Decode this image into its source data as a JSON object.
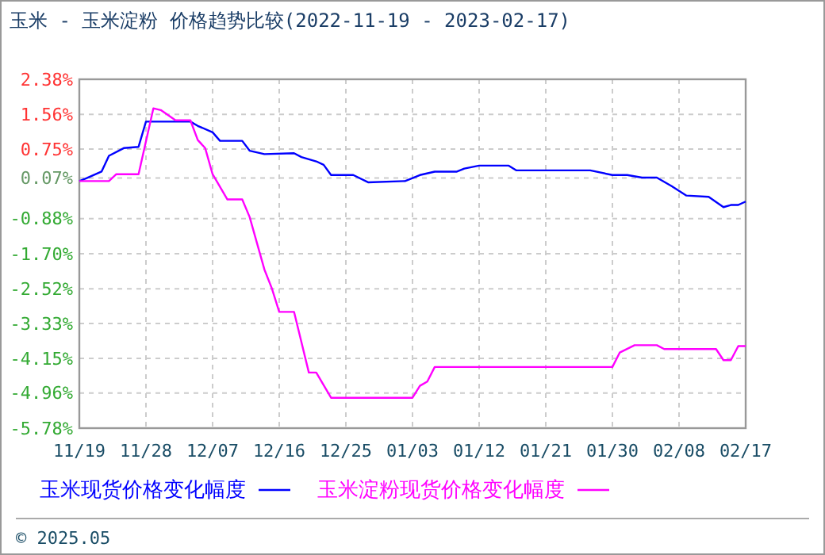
{
  "chart_data": {
    "type": "line",
    "title": "玉米 - 玉米淀粉 价格趋势比较(2022-11-19 - 2023-02-17)",
    "annotations": [
      "© 2025.05"
    ],
    "xlim": [
      "2022-11-19",
      "2023-02-17"
    ],
    "xticks": [
      {
        "value": "2022-11-19",
        "label": "11/19"
      },
      {
        "value": "2022-11-28",
        "label": "11/28"
      },
      {
        "value": "2022-12-07",
        "label": "12/07"
      },
      {
        "value": "2022-12-16",
        "label": "12/16"
      },
      {
        "value": "2022-12-25",
        "label": "12/25"
      },
      {
        "value": "2023-01-03",
        "label": "01/03"
      },
      {
        "value": "2023-01-12",
        "label": "01/12"
      },
      {
        "value": "2023-01-21",
        "label": "01/21"
      },
      {
        "value": "2023-01-30",
        "label": "01/30"
      },
      {
        "value": "2023-02-08",
        "label": "02/08"
      },
      {
        "value": "2023-02-17",
        "label": "02/17"
      }
    ],
    "ylim": [
      -5.78,
      2.38
    ],
    "yticks": [
      {
        "value": 2.38,
        "label": "2.38%"
      },
      {
        "value": 1.56,
        "label": "1.56%"
      },
      {
        "value": 0.75,
        "label": "0.75%"
      },
      {
        "value": 0.07,
        "label": "0.07%"
      },
      {
        "value": -0.88,
        "label": "-0.88%"
      },
      {
        "value": -1.7,
        "label": "-1.70%"
      },
      {
        "value": -2.52,
        "label": "-2.52%"
      },
      {
        "value": -3.33,
        "label": "-3.33%"
      },
      {
        "value": -4.15,
        "label": "-4.15%"
      },
      {
        "value": -4.96,
        "label": "-4.96%"
      },
      {
        "value": -5.78,
        "label": "-5.78%"
      }
    ],
    "grid": true,
    "legend": "bottom",
    "marker": "none",
    "line_style": "solid",
    "series": [
      {
        "name": "玉米现货价格变化幅度",
        "color": "#0000ff",
        "x": [
          "2022-11-19",
          "2022-11-20",
          "2022-11-22",
          "2022-11-23",
          "2022-11-25",
          "2022-11-27",
          "2022-11-28",
          "2022-12-04",
          "2022-12-05",
          "2022-12-07",
          "2022-12-08",
          "2022-12-11",
          "2022-12-12",
          "2022-12-14",
          "2022-12-18",
          "2022-12-19",
          "2022-12-21",
          "2022-12-22",
          "2022-12-23",
          "2022-12-26",
          "2022-12-28",
          "2023-01-02",
          "2023-01-04",
          "2023-01-06",
          "2023-01-09",
          "2023-01-10",
          "2023-01-12",
          "2023-01-16",
          "2023-01-17",
          "2023-01-27",
          "2023-01-30",
          "2023-02-01",
          "2023-02-03",
          "2023-02-05",
          "2023-02-07",
          "2023-02-09",
          "2023-02-12",
          "2023-02-14",
          "2023-02-15",
          "2023-02-16",
          "2023-02-17"
        ],
        "values": [
          0,
          0.07,
          0.22,
          0.59,
          0.77,
          0.8,
          1.39,
          1.39,
          1.29,
          1.14,
          0.94,
          0.94,
          0.71,
          0.63,
          0.65,
          0.56,
          0.46,
          0.38,
          0.14,
          0.14,
          -0.03,
          0,
          0.14,
          0.22,
          0.22,
          0.29,
          0.36,
          0.36,
          0.25,
          0.25,
          0.14,
          0.14,
          0.08,
          0.08,
          -0.12,
          -0.34,
          -0.37,
          -0.61,
          -0.56,
          -0.56,
          -0.48
        ]
      },
      {
        "name": "玉米淀粉现货价格变化幅度",
        "color": "#ff00ff",
        "x": [
          "2022-11-19",
          "2022-11-23",
          "2022-11-24",
          "2022-11-27",
          "2022-11-29",
          "2022-11-30",
          "2022-12-02",
          "2022-12-04",
          "2022-12-05",
          "2022-12-06",
          "2022-12-07",
          "2022-12-09",
          "2022-12-11",
          "2022-12-12",
          "2022-12-14",
          "2022-12-15",
          "2022-12-16",
          "2022-12-18",
          "2022-12-20",
          "2022-12-21",
          "2022-12-23",
          "2023-01-03",
          "2023-01-04",
          "2023-01-05",
          "2023-01-06",
          "2023-01-30",
          "2023-01-31",
          "2023-02-02",
          "2023-02-05",
          "2023-02-06",
          "2023-02-13",
          "2023-02-14",
          "2023-02-15",
          "2023-02-16",
          "2023-02-17"
        ],
        "values": [
          0,
          0,
          0.16,
          0.16,
          1.7,
          1.66,
          1.42,
          1.42,
          0.96,
          0.77,
          0.16,
          -0.43,
          -0.43,
          -0.84,
          -2.07,
          -2.51,
          -3.06,
          -3.06,
          -4.48,
          -4.48,
          -5.07,
          -5.07,
          -4.79,
          -4.69,
          -4.35,
          -4.35,
          -4.01,
          -3.84,
          -3.84,
          -3.93,
          -3.93,
          -4.19,
          -4.19,
          -3.86,
          -3.86
        ]
      }
    ]
  }
}
